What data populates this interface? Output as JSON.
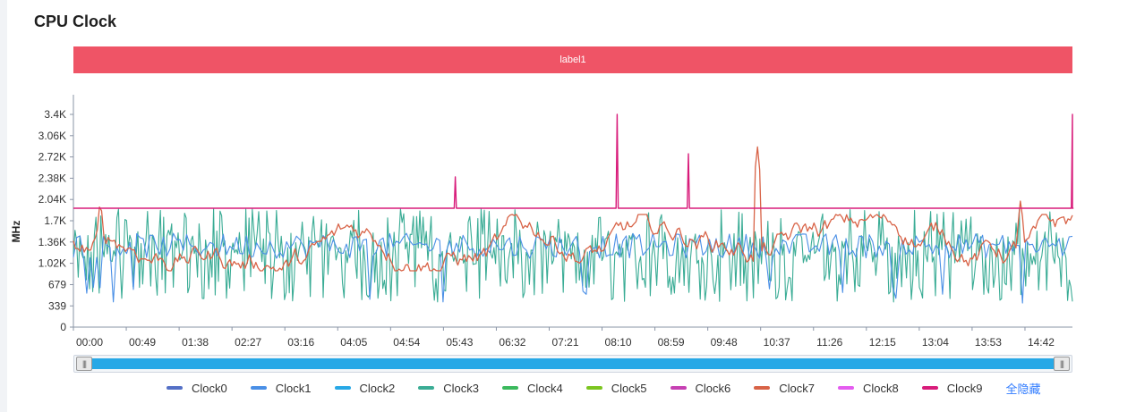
{
  "title": "CPU Clock",
  "colors": {
    "Clock0": "#5470c6",
    "Clock1": "#4a8fe6",
    "Clock2": "#27a8e6",
    "Clock3": "#3aac95",
    "Clock4": "#3bb95d",
    "Clock5": "#7cc520",
    "Clock6": "#c640b3",
    "Clock7": "#d86347",
    "Clock8": "#e45cf0",
    "Clock9": "#d81b7a",
    "label_bar": "#ef5466"
  },
  "chart_data": {
    "type": "line",
    "ylabel": "MHz",
    "ylim": [
      0,
      3400
    ],
    "y_ticks": [
      "0",
      "339",
      "679",
      "1.02K",
      "1.36K",
      "1.7K",
      "2.04K",
      "2.38K",
      "2.72K",
      "3.06K",
      "3.4K"
    ],
    "y_tick_values": [
      0,
      339,
      679,
      1020,
      1360,
      1700,
      2040,
      2380,
      2720,
      3060,
      3400
    ],
    "x_ticks": [
      "00:00",
      "00:49",
      "01:38",
      "02:27",
      "03:16",
      "04:05",
      "04:54",
      "05:43",
      "06:32",
      "07:21",
      "08:10",
      "08:59",
      "09:48",
      "10:37",
      "11:26",
      "12:15",
      "13:04",
      "13:53",
      "14:42"
    ],
    "x_range_minutes": [
      0,
      926
    ],
    "label_band": "label1",
    "series": [
      {
        "name": "Clock6",
        "baseline": 1900,
        "spikes": [
          {
            "t": 354,
            "v": 2400
          },
          {
            "t": 504,
            "v": 3400
          },
          {
            "t": 570,
            "v": 2770
          },
          {
            "t": 926,
            "v": 3400
          }
        ]
      },
      {
        "name": "Clock3",
        "range": [
          400,
          1900
        ],
        "typical": [
          1000,
          1550
        ]
      },
      {
        "name": "Clock1",
        "range": [
          350,
          1900
        ],
        "typical": [
          1100,
          1500
        ]
      },
      {
        "name": "Clock7",
        "range": [
          700,
          2900
        ],
        "typical": [
          1150,
          1600
        ],
        "peaks": [
          {
            "t": 25,
            "v": 2070
          },
          {
            "t": 634,
            "v": 2900
          },
          {
            "t": 878,
            "v": 2070
          }
        ]
      }
    ]
  },
  "legend": {
    "items": [
      "Clock0",
      "Clock1",
      "Clock2",
      "Clock3",
      "Clock4",
      "Clock5",
      "Clock6",
      "Clock7",
      "Clock8",
      "Clock9"
    ],
    "hide_all": "全隐藏"
  }
}
